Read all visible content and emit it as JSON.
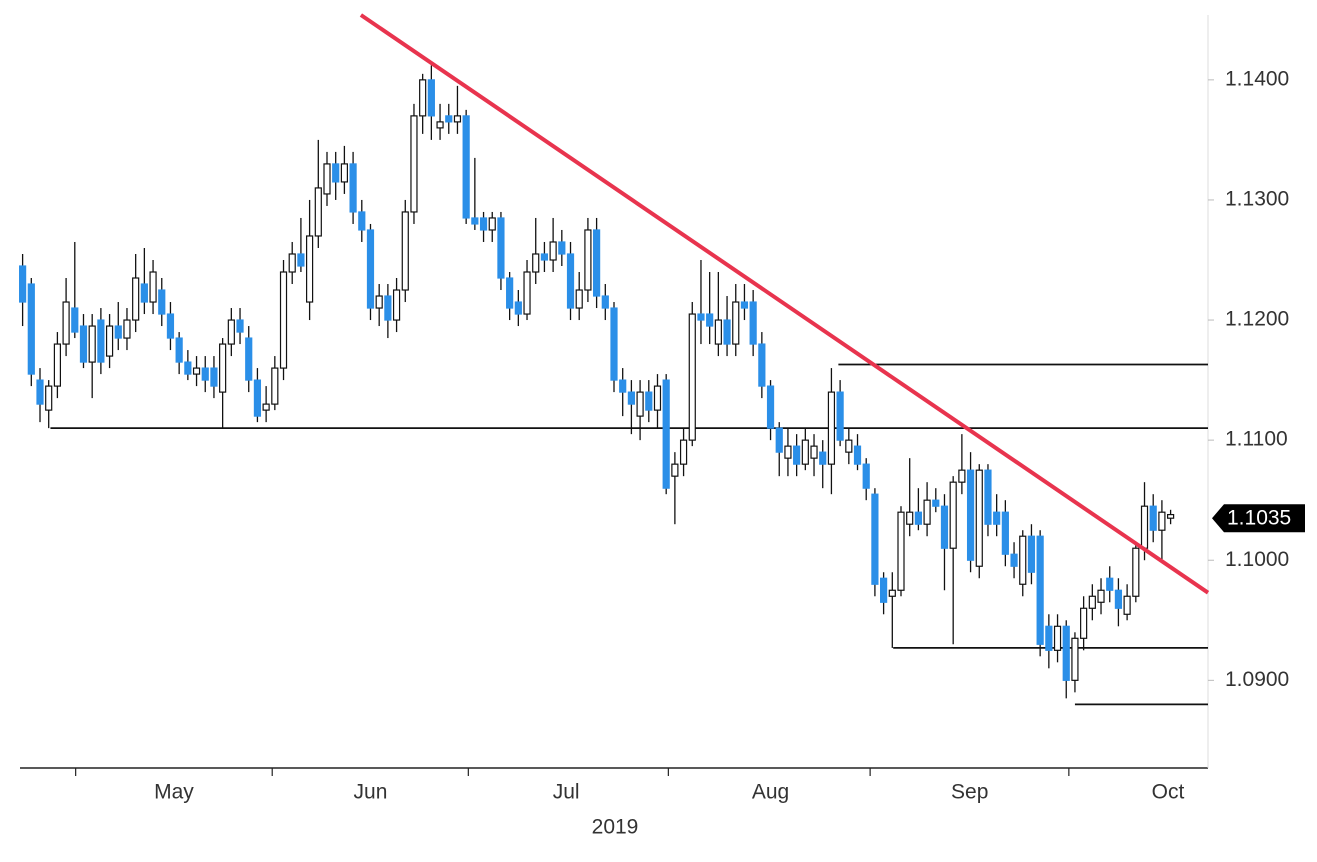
{
  "chart_data": {
    "type": "candlestick",
    "xlabel": "2019",
    "xlim": [
      -0.3,
      136.3
    ],
    "xticks": [
      {
        "value": 17.4,
        "label": "May"
      },
      {
        "value": 40,
        "label": "Jun"
      },
      {
        "value": 62.5,
        "label": "Jul"
      },
      {
        "value": 86,
        "label": "Aug"
      },
      {
        "value": 108.9,
        "label": "Sep"
      },
      {
        "value": 131.7,
        "label": "Oct"
      }
    ],
    "ylim": [
      1.0827,
      1.1454
    ],
    "yticks": [
      {
        "value": 1.09,
        "label": "1.0900"
      },
      {
        "value": 1.1,
        "label": "1.1000"
      },
      {
        "value": 1.11,
        "label": "1.1100"
      },
      {
        "value": 1.12,
        "label": "1.1200"
      },
      {
        "value": 1.13,
        "label": "1.1300"
      },
      {
        "value": 1.14,
        "label": "1.1400"
      }
    ],
    "grid": false,
    "up_color": "#ffffff",
    "down_color": "#2b8fe8",
    "ohlc": [
      [
        1.1245,
        1.1255,
        1.1195,
        1.1215
      ],
      [
        1.123,
        1.1235,
        1.1145,
        1.1155
      ],
      [
        1.115,
        1.116,
        1.1115,
        1.113
      ],
      [
        1.1125,
        1.115,
        1.111,
        1.1145
      ],
      [
        1.1145,
        1.119,
        1.1135,
        1.118
      ],
      [
        1.118,
        1.1235,
        1.117,
        1.1215
      ],
      [
        1.121,
        1.1265,
        1.1185,
        1.119
      ],
      [
        1.1195,
        1.1205,
        1.116,
        1.1165
      ],
      [
        1.1165,
        1.1205,
        1.1135,
        1.1195
      ],
      [
        1.12,
        1.121,
        1.1155,
        1.1165
      ],
      [
        1.117,
        1.1205,
        1.116,
        1.1195
      ],
      [
        1.1195,
        1.1215,
        1.1175,
        1.1185
      ],
      [
        1.1185,
        1.121,
        1.1175,
        1.12
      ],
      [
        1.12,
        1.1255,
        1.119,
        1.1235
      ],
      [
        1.123,
        1.126,
        1.1205,
        1.1215
      ],
      [
        1.1215,
        1.125,
        1.1205,
        1.124
      ],
      [
        1.1225,
        1.1235,
        1.1195,
        1.1205
      ],
      [
        1.1205,
        1.1215,
        1.1175,
        1.1185
      ],
      [
        1.1185,
        1.119,
        1.1155,
        1.1165
      ],
      [
        1.1165,
        1.1175,
        1.115,
        1.1155
      ],
      [
        1.1155,
        1.117,
        1.1145,
        1.116
      ],
      [
        1.116,
        1.117,
        1.114,
        1.115
      ],
      [
        1.116,
        1.117,
        1.1135,
        1.1145
      ],
      [
        1.114,
        1.1185,
        1.111,
        1.118
      ],
      [
        1.118,
        1.121,
        1.117,
        1.12
      ],
      [
        1.12,
        1.121,
        1.118,
        1.119
      ],
      [
        1.1185,
        1.1195,
        1.114,
        1.115
      ],
      [
        1.115,
        1.116,
        1.1115,
        1.112
      ],
      [
        1.1125,
        1.1145,
        1.1115,
        1.113
      ],
      [
        1.113,
        1.117,
        1.1125,
        1.116
      ],
      [
        1.116,
        1.125,
        1.115,
        1.124
      ],
      [
        1.124,
        1.1265,
        1.123,
        1.1255
      ],
      [
        1.1255,
        1.1285,
        1.124,
        1.1245
      ],
      [
        1.1215,
        1.13,
        1.12,
        1.127
      ],
      [
        1.127,
        1.135,
        1.126,
        1.131
      ],
      [
        1.1305,
        1.134,
        1.1295,
        1.133
      ],
      [
        1.133,
        1.134,
        1.13,
        1.1315
      ],
      [
        1.1315,
        1.1345,
        1.1305,
        1.133
      ],
      [
        1.133,
        1.134,
        1.128,
        1.129
      ],
      [
        1.129,
        1.13,
        1.1265,
        1.1275
      ],
      [
        1.1275,
        1.128,
        1.12,
        1.121
      ],
      [
        1.121,
        1.123,
        1.1195,
        1.122
      ],
      [
        1.122,
        1.123,
        1.1185,
        1.12
      ],
      [
        1.12,
        1.1235,
        1.119,
        1.1225
      ],
      [
        1.1225,
        1.13,
        1.1215,
        1.129
      ],
      [
        1.129,
        1.138,
        1.128,
        1.137
      ],
      [
        1.137,
        1.1405,
        1.1355,
        1.14
      ],
      [
        1.14,
        1.1412,
        1.135,
        1.137
      ],
      [
        1.136,
        1.138,
        1.135,
        1.1365
      ],
      [
        1.137,
        1.138,
        1.1355,
        1.1365
      ],
      [
        1.1365,
        1.1395,
        1.1355,
        1.137
      ],
      [
        1.137,
        1.1375,
        1.128,
        1.1285
      ],
      [
        1.1285,
        1.1335,
        1.1275,
        1.128
      ],
      [
        1.1285,
        1.129,
        1.1265,
        1.1275
      ],
      [
        1.1275,
        1.129,
        1.1265,
        1.1285
      ],
      [
        1.1285,
        1.129,
        1.1225,
        1.1235
      ],
      [
        1.1235,
        1.124,
        1.12,
        1.121
      ],
      [
        1.1215,
        1.1225,
        1.1195,
        1.1205
      ],
      [
        1.1205,
        1.125,
        1.12,
        1.124
      ],
      [
        1.124,
        1.1285,
        1.123,
        1.1255
      ],
      [
        1.1255,
        1.1265,
        1.124,
        1.125
      ],
      [
        1.125,
        1.1285,
        1.124,
        1.1265
      ],
      [
        1.1265,
        1.1275,
        1.1245,
        1.1255
      ],
      [
        1.1255,
        1.1265,
        1.12,
        1.121
      ],
      [
        1.121,
        1.124,
        1.12,
        1.1225
      ],
      [
        1.1225,
        1.1285,
        1.1215,
        1.1275
      ],
      [
        1.1275,
        1.1285,
        1.121,
        1.122
      ],
      [
        1.122,
        1.123,
        1.12,
        1.121
      ],
      [
        1.121,
        1.1215,
        1.114,
        1.115
      ],
      [
        1.115,
        1.116,
        1.112,
        1.114
      ],
      [
        1.114,
        1.115,
        1.1105,
        1.113
      ],
      [
        1.112,
        1.115,
        1.11,
        1.114
      ],
      [
        1.114,
        1.115,
        1.1115,
        1.1125
      ],
      [
        1.1125,
        1.1155,
        1.111,
        1.1145
      ],
      [
        1.115,
        1.1155,
        1.1055,
        1.106
      ],
      [
        1.107,
        1.109,
        1.103,
        1.108
      ],
      [
        1.108,
        1.111,
        1.107,
        1.11
      ],
      [
        1.11,
        1.1215,
        1.1095,
        1.1205
      ],
      [
        1.1205,
        1.125,
        1.118,
        1.12
      ],
      [
        1.1205,
        1.124,
        1.118,
        1.1195
      ],
      [
        1.118,
        1.124,
        1.117,
        1.12
      ],
      [
        1.12,
        1.122,
        1.117,
        1.118
      ],
      [
        1.118,
        1.123,
        1.117,
        1.1215
      ],
      [
        1.1215,
        1.123,
        1.12,
        1.121
      ],
      [
        1.1215,
        1.1225,
        1.117,
        1.118
      ],
      [
        1.118,
        1.119,
        1.1135,
        1.1145
      ],
      [
        1.1145,
        1.115,
        1.11,
        1.111
      ],
      [
        1.111,
        1.1115,
        1.107,
        1.109
      ],
      [
        1.1085,
        1.111,
        1.107,
        1.1095
      ],
      [
        1.1095,
        1.1105,
        1.107,
        1.108
      ],
      [
        1.108,
        1.111,
        1.1075,
        1.11
      ],
      [
        1.1085,
        1.1105,
        1.107,
        1.1095
      ],
      [
        1.109,
        1.11,
        1.106,
        1.108
      ],
      [
        1.108,
        1.116,
        1.1055,
        1.114
      ],
      [
        1.114,
        1.115,
        1.1095,
        1.11
      ],
      [
        1.109,
        1.111,
        1.108,
        1.11
      ],
      [
        1.1095,
        1.1105,
        1.1075,
        1.108
      ],
      [
        1.108,
        1.1085,
        1.105,
        1.106
      ],
      [
        1.1055,
        1.106,
        1.097,
        1.098
      ],
      [
        1.0985,
        1.099,
        1.0955,
        1.0965
      ],
      [
        1.097,
        1.099,
        1.0927,
        1.0975
      ],
      [
        1.0975,
        1.1045,
        1.097,
        1.104
      ],
      [
        1.103,
        1.1085,
        1.102,
        1.104
      ],
      [
        1.104,
        1.106,
        1.1025,
        1.103
      ],
      [
        1.103,
        1.1065,
        1.102,
        1.105
      ],
      [
        1.105,
        1.106,
        1.104,
        1.1045
      ],
      [
        1.1045,
        1.1055,
        1.0975,
        1.101
      ],
      [
        1.101,
        1.107,
        1.093,
        1.1065
      ],
      [
        1.1065,
        1.1105,
        1.1055,
        1.1075
      ],
      [
        1.1075,
        1.109,
        1.099,
        1.1
      ],
      [
        1.0995,
        1.108,
        1.0985,
        1.1075
      ],
      [
        1.1075,
        1.108,
        1.102,
        1.103
      ],
      [
        1.104,
        1.1055,
        1.102,
        1.103
      ],
      [
        1.104,
        1.105,
        1.0995,
        1.1005
      ],
      [
        1.1005,
        1.1015,
        1.0985,
        1.0995
      ],
      [
        1.098,
        1.1025,
        1.097,
        1.102
      ],
      [
        1.102,
        1.103,
        1.098,
        1.099
      ],
      [
        1.102,
        1.1025,
        1.092,
        1.093
      ],
      [
        1.0945,
        1.0955,
        1.091,
        1.0925
      ],
      [
        1.0925,
        1.0955,
        1.0915,
        1.0945
      ],
      [
        1.0945,
        1.095,
        1.0885,
        1.09
      ],
      [
        1.09,
        1.094,
        1.089,
        1.0935
      ],
      [
        1.0935,
        1.097,
        1.0925,
        1.096
      ],
      [
        1.096,
        1.098,
        1.095,
        1.097
      ],
      [
        1.0965,
        1.0985,
        1.0955,
        1.0975
      ],
      [
        1.0985,
        1.0995,
        1.0965,
        1.0975
      ],
      [
        1.0975,
        1.0985,
        1.0945,
        1.096
      ],
      [
        1.0955,
        1.098,
        1.095,
        1.097
      ],
      [
        1.097,
        1.1015,
        1.0965,
        1.101
      ],
      [
        1.101,
        1.1065,
        1.1,
        1.1045
      ],
      [
        1.1045,
        1.1055,
        1.1015,
        1.1025
      ],
      [
        1.1025,
        1.105,
        1.0998,
        1.104
      ],
      [
        1.1035,
        1.1042,
        1.103,
        1.1038
      ]
    ],
    "trendline": {
      "x": [
        38.9,
        136.3
      ],
      "y": [
        1.1454,
        1.0973
      ],
      "color": "#e8344e"
    },
    "levels": [
      {
        "value": 1.111,
        "x": 3.2
      },
      {
        "value": 1.1163,
        "x": 93.8
      },
      {
        "value": 1.0927,
        "x": 100.1
      },
      {
        "value": 1.088,
        "x": 121
      }
    ],
    "last_price": {
      "value": 1.1035,
      "label": "1.1035"
    }
  }
}
